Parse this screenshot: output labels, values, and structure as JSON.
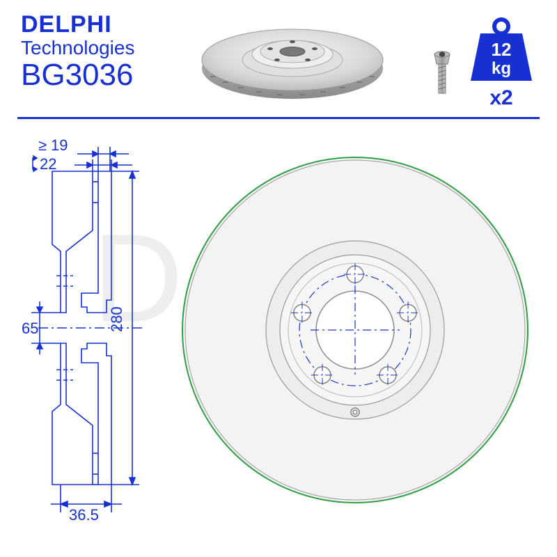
{
  "colors": {
    "brand_blue": "#1730d1",
    "line": "#1730d1",
    "dim_text": "#1730d1",
    "disc_fill": "#e9e9e9",
    "disc_stroke": "#8a8a8a",
    "disc_edge_green": "#2f9e44",
    "watermark": "#eeeeee",
    "screw_gray": "#9a9a9a",
    "weight_fill": "#1730d1",
    "white": "#ffffff",
    "black": "#222222"
  },
  "brand": {
    "line1": "DELPHI",
    "line2": "Technologies",
    "part_number": "BG3036"
  },
  "weight": {
    "value": "12",
    "unit": "kg"
  },
  "quantity_label": "x2",
  "watermark_text": "Delphi",
  "dimensions": {
    "min_thickness": "19",
    "thickness": "22",
    "hub_diameter": "65",
    "outer_diameter": "280",
    "hat_depth": "36.5"
  },
  "drawing": {
    "bolt_holes": 5,
    "locator_holes": 1,
    "stroke_width_thin": 1.2,
    "stroke_width_dim": 1.6,
    "font_size_dim": 22
  }
}
